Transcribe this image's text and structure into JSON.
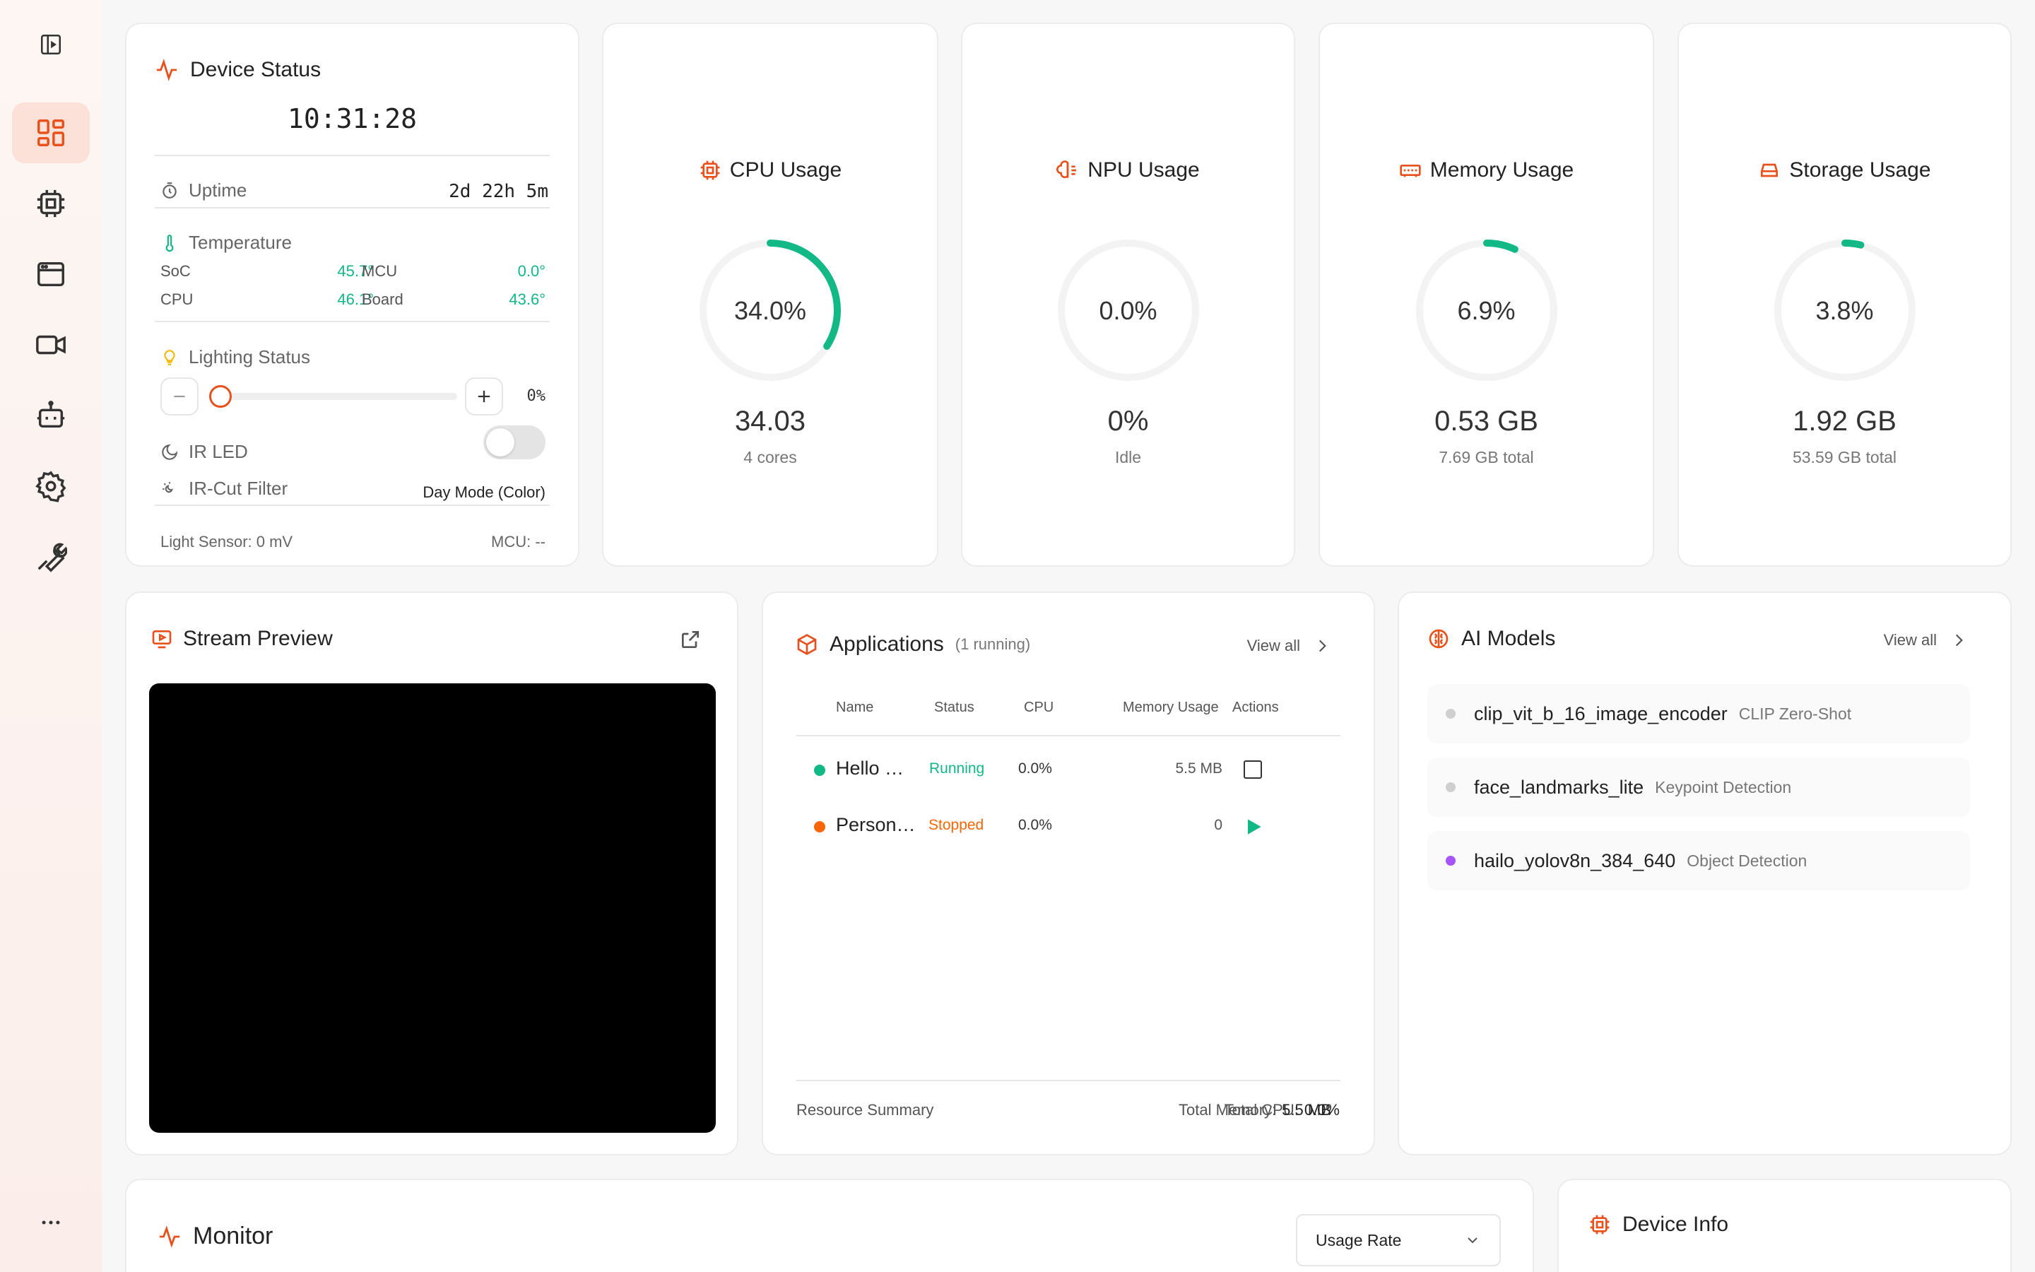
{
  "sidebar": {
    "items": [
      {
        "icon": "panel-toggle-icon"
      },
      {
        "icon": "dashboard-icon",
        "active": true
      },
      {
        "icon": "chip-icon"
      },
      {
        "icon": "window-icon"
      },
      {
        "icon": "video-camera-icon"
      },
      {
        "icon": "robot-icon"
      },
      {
        "icon": "gear-icon"
      },
      {
        "icon": "wrench-icon"
      },
      {
        "icon": "more-icon"
      }
    ]
  },
  "device_status": {
    "title": "Device Status",
    "clock": "10:31:28",
    "uptime_label": "Uptime",
    "uptime_value": "2d 22h 5m",
    "temperature_label": "Temperature",
    "temps": [
      {
        "label": "SoC",
        "value": "45.7°"
      },
      {
        "label": "MCU",
        "value": "0.0°"
      },
      {
        "label": "CPU",
        "value": "46.1°"
      },
      {
        "label": "Board",
        "value": "43.6°"
      }
    ],
    "lighting_label": "Lighting Status",
    "lighting_value": "0%",
    "lighting_level": 0,
    "ir_led_label": "IR LED",
    "ir_led_on": false,
    "ir_cut_label": "IR-Cut Filter",
    "ir_cut_value": "Day Mode (Color)",
    "light_sensor": "Light Sensor: 0 mV",
    "mcu": "MCU: --"
  },
  "gauges": [
    {
      "title": "CPU Usage",
      "icon": "chip-icon",
      "percent_label": "34.0%",
      "percent": 34.0,
      "big": "34.03",
      "small": "4 cores"
    },
    {
      "title": "NPU Usage",
      "icon": "brain-chip-icon",
      "percent_label": "0.0%",
      "percent": 0.0,
      "big": "0%",
      "small": "Idle"
    },
    {
      "title": "Memory Usage",
      "icon": "memory-icon",
      "percent_label": "6.9%",
      "percent": 6.9,
      "big": "0.53 GB",
      "small": "7.69 GB total"
    },
    {
      "title": "Storage Usage",
      "icon": "hard-drive-icon",
      "percent_label": "3.8%",
      "percent": 3.8,
      "big": "1.92 GB",
      "small": "53.59 GB total"
    }
  ],
  "stream": {
    "title": "Stream Preview"
  },
  "applications": {
    "title": "Applications",
    "running": "(1 running)",
    "view_all": "View all",
    "headers": [
      "Name",
      "Status",
      "CPU",
      "Memory Usage",
      "Actions"
    ],
    "rows": [
      {
        "name": "Hello …",
        "status": "Running",
        "cpu": "0.0%",
        "memory": "5.5 MB",
        "status_color": "#12b886"
      },
      {
        "name": "Person…",
        "status": "Stopped",
        "cpu": "0.0%",
        "memory": "0",
        "status_color": "#f76707"
      }
    ],
    "summary_label": "Resource Summary",
    "total_cpu_label": "Total CPU:",
    "total_cpu": "0.0%",
    "total_mem_label": "Total Memory:",
    "total_mem": "5.5 MB"
  },
  "models": {
    "title": "AI Models",
    "view_all": "View all",
    "items": [
      {
        "name": "clip_vit_b_16_image_encoder",
        "tag": "CLIP Zero-Shot",
        "color": "#cfcfcf"
      },
      {
        "name": "face_landmarks_lite",
        "tag": "Keypoint Detection",
        "color": "#cfcfcf"
      },
      {
        "name": "hailo_yolov8n_384_640",
        "tag": "Object Detection",
        "color": "#a855f7"
      }
    ]
  },
  "monitor": {
    "title": "Monitor",
    "select_value": "Usage Rate"
  },
  "device_info": {
    "title": "Device Info"
  },
  "colors": {
    "accent": "#e8511c",
    "green": "#12b886",
    "orange": "#f76707"
  }
}
